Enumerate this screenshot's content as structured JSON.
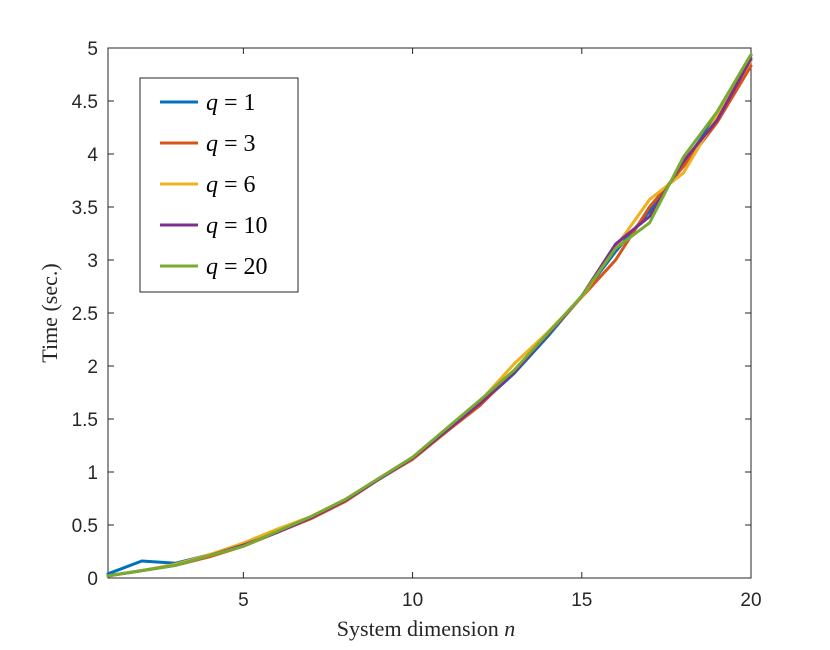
{
  "chart_data": {
    "type": "line",
    "title": "",
    "xlabel": "System dimension",
    "xlabel_var": "n",
    "ylabel": "Time (sec.)",
    "xlim": [
      1,
      20
    ],
    "ylim": [
      0,
      5
    ],
    "xticks": [
      5,
      10,
      15,
      20
    ],
    "xtick_labels": [
      "5",
      "10",
      "15",
      "20"
    ],
    "yticks": [
      0,
      0.5,
      1,
      1.5,
      2,
      2.5,
      3,
      3.5,
      4,
      4.5,
      5
    ],
    "ytick_labels": [
      "0",
      "0.5",
      "1",
      "1.5",
      "2",
      "2.5",
      "3",
      "3.5",
      "4",
      "4.5",
      "5"
    ],
    "grid": false,
    "legend_position": "top-left",
    "x": [
      1,
      2,
      3,
      4,
      5,
      6,
      7,
      8,
      9,
      10,
      11,
      12,
      13,
      14,
      15,
      16,
      17,
      18,
      19,
      20
    ],
    "series": [
      {
        "name": "q = 1",
        "var": "q",
        "value": "1",
        "color": "#0072BD",
        "values": [
          0.04,
          0.16,
          0.14,
          0.22,
          0.31,
          0.43,
          0.57,
          0.73,
          0.93,
          1.13,
          1.38,
          1.64,
          1.93,
          2.28,
          2.66,
          3.08,
          3.46,
          3.9,
          4.37,
          4.93
        ]
      },
      {
        "name": "q = 3",
        "var": "q",
        "value": "3",
        "color": "#D95319",
        "values": [
          0.02,
          0.07,
          0.12,
          0.2,
          0.3,
          0.43,
          0.56,
          0.72,
          0.93,
          1.12,
          1.38,
          1.63,
          1.95,
          2.3,
          2.65,
          3.0,
          3.5,
          3.88,
          4.3,
          4.83
        ]
      },
      {
        "name": "q = 6",
        "var": "q",
        "value": "6",
        "color": "#EDB120",
        "values": [
          0.02,
          0.07,
          0.13,
          0.22,
          0.33,
          0.46,
          0.58,
          0.74,
          0.93,
          1.13,
          1.4,
          1.67,
          2.02,
          2.32,
          2.65,
          3.12,
          3.57,
          3.82,
          4.36,
          4.88
        ]
      },
      {
        "name": "q = 10",
        "var": "q",
        "value": "10",
        "color": "#7E2F8E",
        "values": [
          0.02,
          0.07,
          0.12,
          0.21,
          0.31,
          0.43,
          0.57,
          0.73,
          0.93,
          1.13,
          1.39,
          1.65,
          1.94,
          2.3,
          2.66,
          3.15,
          3.41,
          3.93,
          4.32,
          4.9
        ]
      },
      {
        "name": "q = 20",
        "var": "q",
        "value": "20",
        "color": "#77AC30",
        "values": [
          0.02,
          0.07,
          0.12,
          0.21,
          0.3,
          0.44,
          0.58,
          0.74,
          0.94,
          1.14,
          1.41,
          1.68,
          1.96,
          2.31,
          2.66,
          3.11,
          3.35,
          3.97,
          4.4,
          4.94
        ]
      }
    ]
  }
}
